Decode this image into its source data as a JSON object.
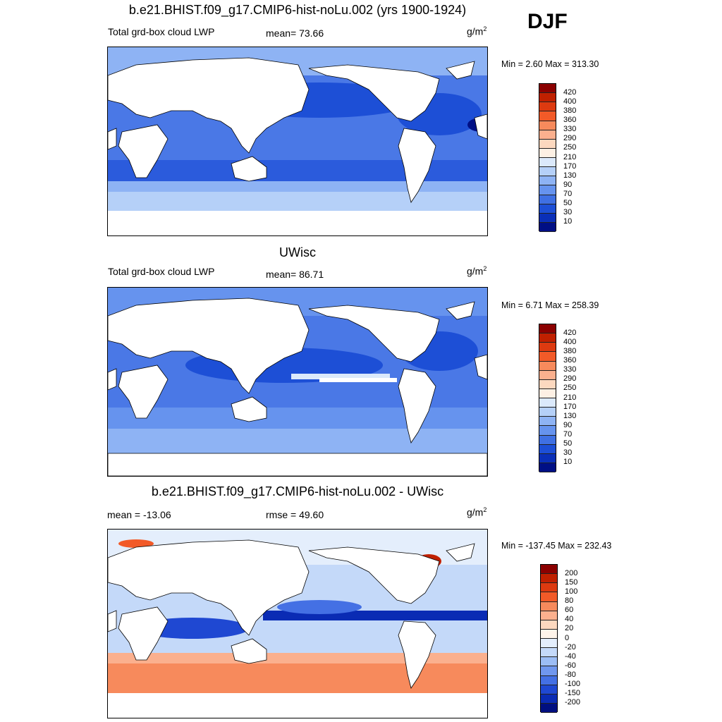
{
  "season": "DJF",
  "panels": [
    {
      "id": "p1",
      "title": "b.e21.BHIST.f09_g17.CMIP6-hist-noLu.002 (yrs 1900-1924)",
      "left_label": "Total grd-box cloud LWP",
      "center_label": "mean=  73.66",
      "unit": "g/m",
      "unit_sup": "2",
      "minmax": "Min =   2.60 Max = 313.30",
      "legend": {
        "labels": [
          "420",
          "400",
          "380",
          "360",
          "330",
          "290",
          "250",
          "210",
          "170",
          "130",
          "90",
          "70",
          "50",
          "30",
          "10"
        ],
        "colors": [
          "#8b0000",
          "#c02000",
          "#dd3a10",
          "#f25a28",
          "#f78a5c",
          "#fbb08e",
          "#fcd8bf",
          "#fdf0e4",
          "#dbe9fb",
          "#b5d0f8",
          "#8eb3f4",
          "#6693ee",
          "#3f70e3",
          "#1d4fd6",
          "#0a2fb8",
          "#000f85"
        ]
      }
    },
    {
      "id": "p2",
      "title": "UWisc",
      "left_label": "Total grd-box cloud LWP",
      "center_label": "mean=  86.71",
      "unit": "g/m",
      "unit_sup": "2",
      "minmax": "Min =   6.71 Max = 258.39",
      "legend": {
        "labels": [
          "420",
          "400",
          "380",
          "360",
          "330",
          "290",
          "250",
          "210",
          "170",
          "130",
          "90",
          "70",
          "50",
          "30",
          "10"
        ],
        "colors": [
          "#8b0000",
          "#c02000",
          "#dd3a10",
          "#f25a28",
          "#f78a5c",
          "#fbb08e",
          "#fcd8bf",
          "#fdf0e4",
          "#dbe9fb",
          "#b5d0f8",
          "#8eb3f4",
          "#6693ee",
          "#3f70e3",
          "#1d4fd6",
          "#0a2fb8",
          "#000f85"
        ]
      }
    },
    {
      "id": "p3",
      "title": "b.e21.BHIST.f09_g17.CMIP6-hist-noLu.002 - UWisc",
      "left_label": "mean = -13.06",
      "center_label": "rmse =  49.60",
      "unit": "g/m",
      "unit_sup": "2",
      "minmax": "Min = -137.45 Max = 232.43",
      "legend": {
        "labels": [
          "200",
          "150",
          "100",
          "80",
          "60",
          "40",
          "20",
          "0",
          "-20",
          "-40",
          "-60",
          "-80",
          "-100",
          "-150",
          "-200"
        ],
        "colors": [
          "#8b0000",
          "#c02000",
          "#dd3a10",
          "#f25a28",
          "#f78a5c",
          "#fbb08e",
          "#fcd8bf",
          "#fff4ea",
          "#e4eefc",
          "#c4d9f9",
          "#9cbdf5",
          "#7097ee",
          "#4470e4",
          "#1f48d2",
          "#0a2bb4",
          "#000f80"
        ]
      }
    }
  ]
}
